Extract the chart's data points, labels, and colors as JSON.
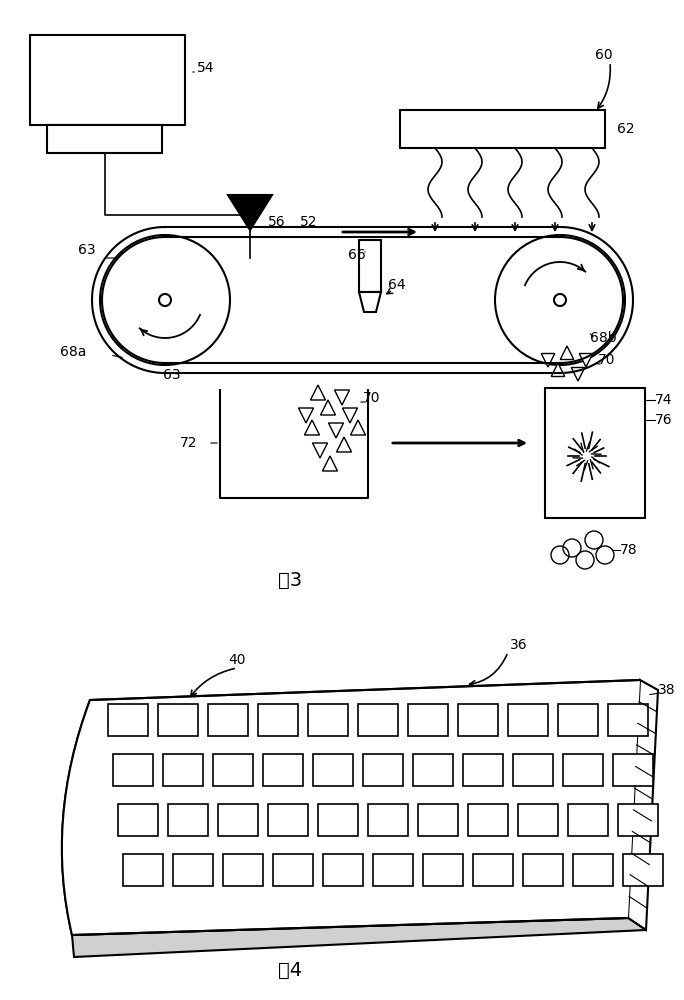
{
  "fig3_label": "图3",
  "fig4_label": "图4",
  "bg_color": "#ffffff",
  "line_color": "#000000"
}
